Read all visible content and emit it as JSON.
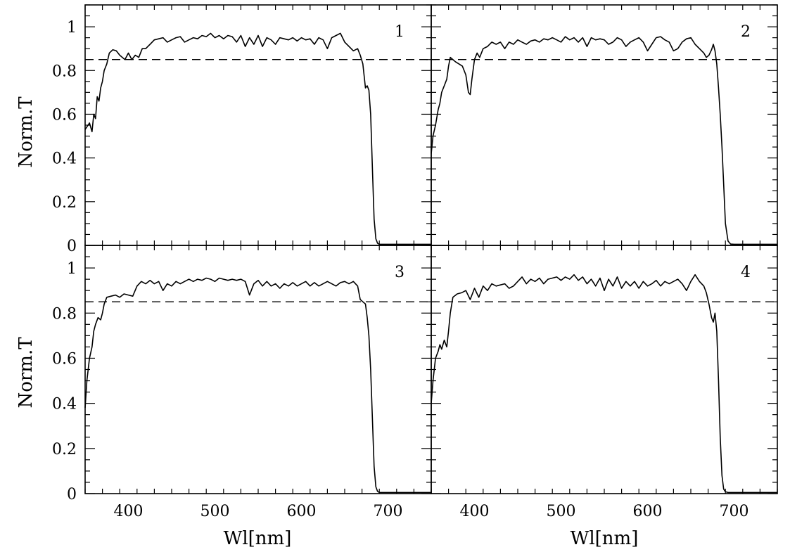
{
  "figure": {
    "ylabel": "Norm.T",
    "xlabel": "Wl[nm]"
  },
  "chart_data": {
    "type": "line",
    "layout": "2x2 grid, shared axes",
    "xlim": [
      350,
      750
    ],
    "ylim": [
      0,
      1.1
    ],
    "xticks": [
      400,
      500,
      600,
      700
    ],
    "yticks": [
      0,
      0.2,
      0.4,
      0.6,
      0.8,
      1
    ],
    "ytick_labels": [
      "0",
      "0.2",
      "0.4",
      "0.6",
      "0.8",
      "1"
    ],
    "xlabel": "Wl[nm]",
    "ylabel": "Norm.T",
    "reference_line": {
      "y": 0.85,
      "style": "dashed"
    },
    "grid": false,
    "panels": [
      {
        "label": "1",
        "x": [
          350,
          355,
          358,
          360,
          362,
          364,
          366,
          368,
          370,
          372,
          375,
          378,
          382,
          386,
          390,
          393,
          396,
          400,
          404,
          408,
          412,
          416,
          420,
          425,
          430,
          435,
          440,
          445,
          450,
          455,
          460,
          465,
          470,
          475,
          480,
          485,
          490,
          495,
          500,
          505,
          510,
          515,
          520,
          525,
          530,
          535,
          540,
          545,
          550,
          555,
          560,
          565,
          570,
          575,
          580,
          585,
          590,
          595,
          600,
          605,
          610,
          615,
          620,
          625,
          630,
          635,
          640,
          645,
          650,
          655,
          660,
          665,
          668,
          671,
          674,
          676,
          678,
          680,
          682,
          684,
          686,
          688,
          690,
          695,
          700,
          710,
          720,
          730,
          740,
          750
        ],
        "y": [
          0.53,
          0.56,
          0.52,
          0.6,
          0.58,
          0.68,
          0.66,
          0.72,
          0.75,
          0.8,
          0.83,
          0.88,
          0.895,
          0.89,
          0.87,
          0.86,
          0.85,
          0.88,
          0.85,
          0.87,
          0.86,
          0.9,
          0.9,
          0.92,
          0.94,
          0.945,
          0.95,
          0.93,
          0.94,
          0.95,
          0.955,
          0.93,
          0.94,
          0.95,
          0.945,
          0.96,
          0.955,
          0.97,
          0.95,
          0.96,
          0.945,
          0.96,
          0.955,
          0.93,
          0.96,
          0.91,
          0.95,
          0.92,
          0.96,
          0.91,
          0.95,
          0.94,
          0.92,
          0.95,
          0.945,
          0.94,
          0.95,
          0.935,
          0.95,
          0.94,
          0.945,
          0.92,
          0.95,
          0.94,
          0.9,
          0.95,
          0.96,
          0.97,
          0.93,
          0.91,
          0.89,
          0.9,
          0.87,
          0.83,
          0.72,
          0.73,
          0.71,
          0.6,
          0.35,
          0.12,
          0.03,
          0.01,
          0.005,
          0.005,
          0.005,
          0.005,
          0.005,
          0.005,
          0.005,
          0.005
        ]
      },
      {
        "label": "2",
        "x": [
          350,
          352,
          355,
          358,
          360,
          362,
          365,
          368,
          370,
          372,
          375,
          378,
          382,
          386,
          390,
          393,
          395,
          397,
          400,
          403,
          406,
          410,
          415,
          420,
          425,
          430,
          435,
          440,
          445,
          450,
          455,
          460,
          465,
          470,
          475,
          480,
          485,
          490,
          495,
          500,
          505,
          510,
          515,
          520,
          525,
          530,
          535,
          540,
          545,
          550,
          555,
          560,
          565,
          570,
          575,
          580,
          585,
          590,
          595,
          600,
          605,
          610,
          615,
          620,
          625,
          630,
          635,
          640,
          645,
          650,
          655,
          660,
          665,
          668,
          671,
          674,
          676,
          678,
          680,
          682,
          684,
          686,
          688,
          690,
          693,
          696,
          700,
          710,
          720,
          730,
          740,
          750
        ],
        "y": [
          0.42,
          0.5,
          0.55,
          0.62,
          0.65,
          0.7,
          0.73,
          0.76,
          0.82,
          0.86,
          0.85,
          0.84,
          0.83,
          0.82,
          0.78,
          0.7,
          0.69,
          0.76,
          0.85,
          0.88,
          0.86,
          0.9,
          0.91,
          0.93,
          0.92,
          0.93,
          0.9,
          0.93,
          0.92,
          0.94,
          0.93,
          0.92,
          0.935,
          0.94,
          0.93,
          0.945,
          0.94,
          0.95,
          0.94,
          0.93,
          0.955,
          0.94,
          0.95,
          0.93,
          0.95,
          0.91,
          0.95,
          0.94,
          0.945,
          0.94,
          0.92,
          0.93,
          0.95,
          0.94,
          0.91,
          0.93,
          0.94,
          0.95,
          0.93,
          0.89,
          0.92,
          0.95,
          0.955,
          0.94,
          0.93,
          0.89,
          0.9,
          0.93,
          0.945,
          0.95,
          0.92,
          0.9,
          0.88,
          0.86,
          0.87,
          0.895,
          0.92,
          0.89,
          0.83,
          0.72,
          0.6,
          0.45,
          0.28,
          0.1,
          0.02,
          0.006,
          0.005,
          0.005,
          0.005,
          0.005,
          0.005,
          0.005
        ]
      },
      {
        "label": "3",
        "x": [
          350,
          352,
          355,
          358,
          360,
          362,
          365,
          368,
          370,
          372,
          375,
          380,
          385,
          390,
          395,
          400,
          405,
          410,
          415,
          420,
          425,
          430,
          435,
          440,
          445,
          450,
          455,
          460,
          465,
          470,
          475,
          480,
          485,
          490,
          495,
          500,
          505,
          510,
          515,
          520,
          525,
          530,
          535,
          540,
          545,
          550,
          555,
          560,
          565,
          570,
          575,
          580,
          585,
          590,
          595,
          600,
          605,
          610,
          615,
          620,
          625,
          630,
          635,
          640,
          645,
          650,
          655,
          660,
          665,
          668,
          671,
          674,
          676,
          678,
          680,
          682,
          684,
          686,
          688,
          690,
          693,
          696,
          700,
          710,
          720,
          730,
          740,
          750
        ],
        "y": [
          0.38,
          0.5,
          0.6,
          0.65,
          0.72,
          0.75,
          0.78,
          0.77,
          0.8,
          0.84,
          0.87,
          0.875,
          0.88,
          0.87,
          0.885,
          0.88,
          0.875,
          0.92,
          0.94,
          0.93,
          0.945,
          0.93,
          0.94,
          0.9,
          0.93,
          0.92,
          0.94,
          0.93,
          0.94,
          0.95,
          0.94,
          0.95,
          0.945,
          0.955,
          0.95,
          0.94,
          0.955,
          0.95,
          0.945,
          0.95,
          0.945,
          0.95,
          0.94,
          0.88,
          0.93,
          0.945,
          0.92,
          0.94,
          0.92,
          0.93,
          0.91,
          0.93,
          0.92,
          0.935,
          0.92,
          0.93,
          0.94,
          0.92,
          0.935,
          0.92,
          0.93,
          0.94,
          0.93,
          0.92,
          0.935,
          0.94,
          0.93,
          0.94,
          0.92,
          0.86,
          0.85,
          0.84,
          0.78,
          0.7,
          0.55,
          0.33,
          0.12,
          0.03,
          0.01,
          0.005,
          0.005,
          0.005,
          0.005,
          0.005,
          0.005,
          0.005,
          0.005,
          0.005
        ]
      },
      {
        "label": "4",
        "x": [
          350,
          352,
          355,
          358,
          360,
          362,
          365,
          368,
          370,
          372,
          375,
          380,
          385,
          390,
          395,
          400,
          405,
          410,
          415,
          420,
          425,
          430,
          435,
          440,
          445,
          450,
          455,
          460,
          465,
          470,
          475,
          480,
          485,
          490,
          495,
          500,
          505,
          510,
          515,
          520,
          525,
          530,
          535,
          540,
          545,
          550,
          555,
          560,
          565,
          570,
          575,
          580,
          585,
          590,
          595,
          600,
          605,
          610,
          615,
          620,
          625,
          630,
          635,
          640,
          645,
          650,
          655,
          660,
          665,
          668,
          671,
          674,
          676,
          678,
          680,
          682,
          684,
          686,
          688,
          690,
          693,
          696,
          700,
          710,
          720,
          730,
          740,
          750
        ],
        "y": [
          0.4,
          0.5,
          0.6,
          0.63,
          0.66,
          0.64,
          0.68,
          0.65,
          0.72,
          0.8,
          0.87,
          0.885,
          0.89,
          0.9,
          0.86,
          0.91,
          0.87,
          0.92,
          0.9,
          0.93,
          0.92,
          0.925,
          0.93,
          0.91,
          0.92,
          0.94,
          0.96,
          0.93,
          0.95,
          0.94,
          0.955,
          0.93,
          0.95,
          0.955,
          0.96,
          0.945,
          0.96,
          0.95,
          0.97,
          0.945,
          0.96,
          0.93,
          0.95,
          0.92,
          0.955,
          0.9,
          0.95,
          0.92,
          0.96,
          0.91,
          0.94,
          0.92,
          0.94,
          0.91,
          0.94,
          0.92,
          0.93,
          0.945,
          0.92,
          0.94,
          0.93,
          0.94,
          0.95,
          0.93,
          0.9,
          0.94,
          0.97,
          0.94,
          0.92,
          0.89,
          0.84,
          0.78,
          0.76,
          0.8,
          0.72,
          0.5,
          0.25,
          0.08,
          0.02,
          0.008,
          0.005,
          0.005,
          0.005,
          0.005,
          0.005,
          0.005,
          0.005,
          0.005
        ]
      }
    ]
  }
}
